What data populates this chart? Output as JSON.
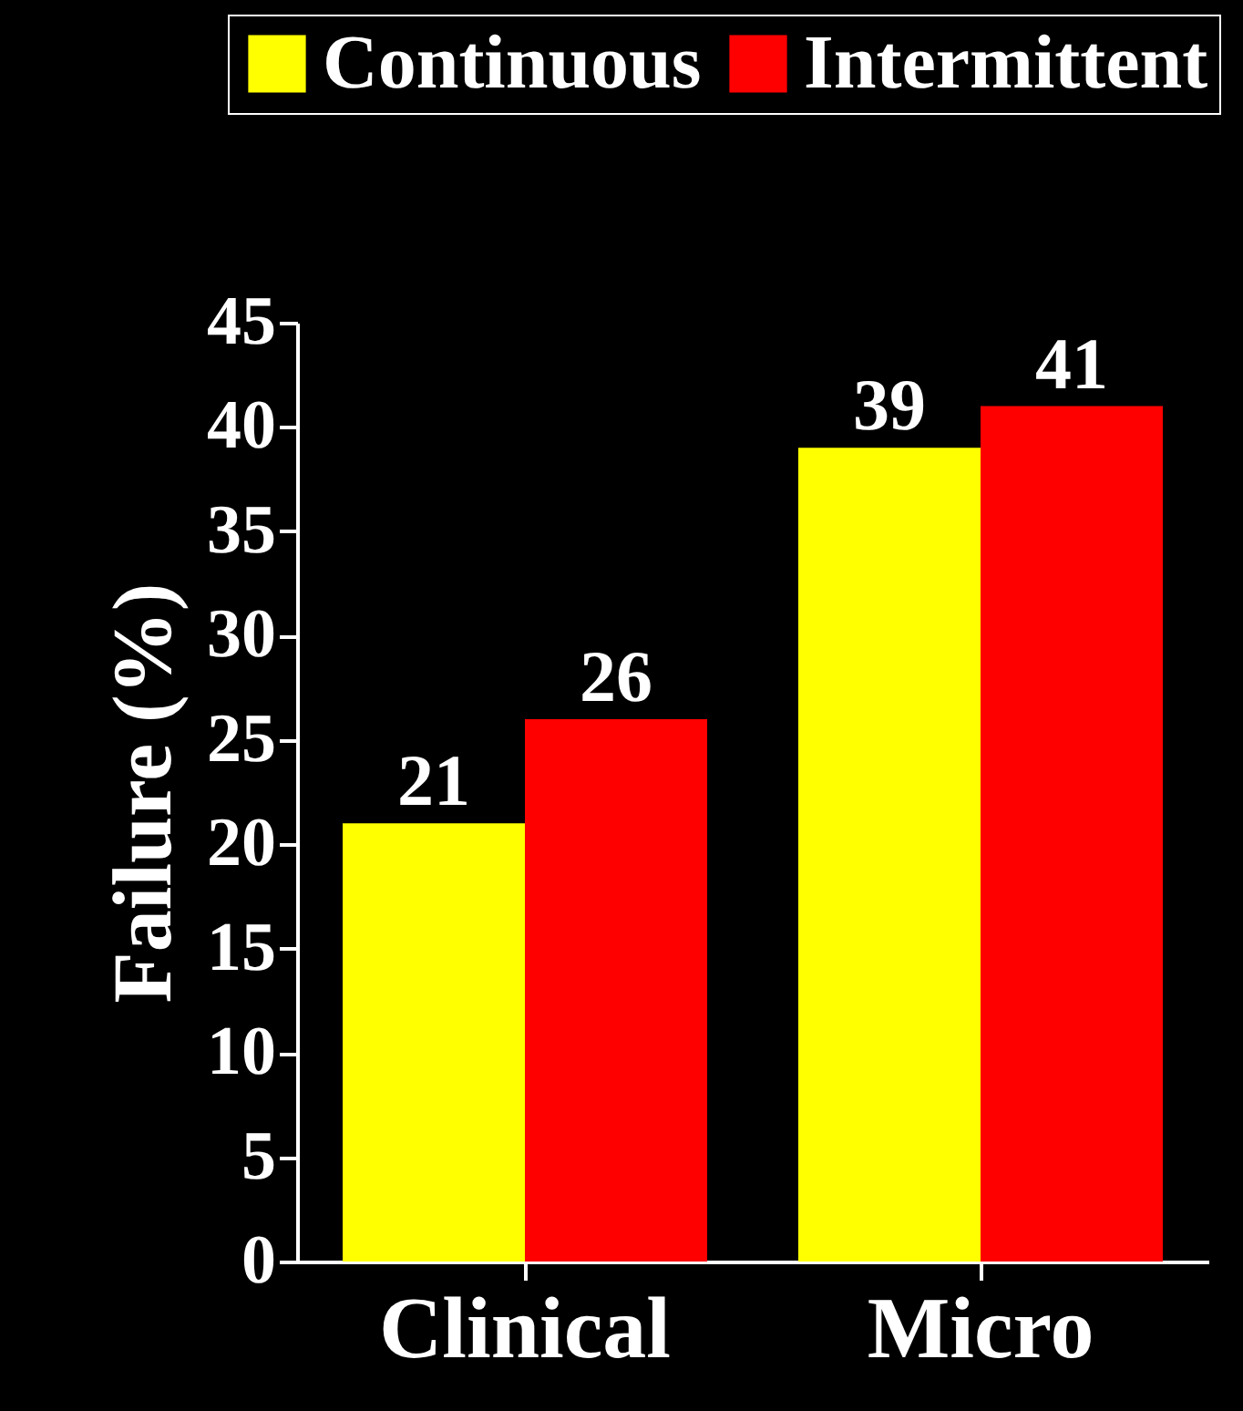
{
  "chart_data": {
    "type": "bar",
    "ylabel": "Failure (%)",
    "categories": [
      "Clinical",
      "Micro"
    ],
    "series": [
      {
        "name": "Continuous",
        "color": "#ffff00",
        "values": [
          21,
          39
        ]
      },
      {
        "name": "Intermittent",
        "color": "#ff0000",
        "values": [
          26,
          41
        ]
      }
    ],
    "ylim": [
      0,
      45
    ],
    "yticks": [
      0,
      5,
      10,
      15,
      20,
      25,
      30,
      35,
      40,
      45
    ],
    "grid": false,
    "legend": "top",
    "data_labels": true
  }
}
